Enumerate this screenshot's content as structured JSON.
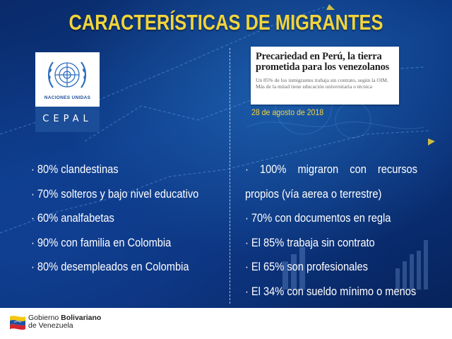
{
  "title": "CARACTERÍSTICAS DE MIGRANTES",
  "logo": {
    "un_label": "NACIONES UNIDAS",
    "cepal_label": "CEPAL"
  },
  "news": {
    "headline": "Precariedad en Perú, la tierra prometida para los venezolanos",
    "summary": "Un 85% de los inmigrantes trabaja sin contrato, según la OIM. Más de la mitad tiene educación universitaria o técnica",
    "date": "28 de agosto de 2018"
  },
  "left_items": [
    "· 80% clandestinas",
    "· 70% solteros y bajo nivel educativo",
    "· 60% analfabetas",
    "· 90% con familia en Colombia",
    "· 80% desempleados en Colombia"
  ],
  "right_items": [
    "· 100% migraron con recursos",
    "propios (vía aerea o terrestre)",
    "· 70% con documentos en regla",
    "· El 85% trabaja sin contrato",
    "· El 65% son profesionales",
    "· El 34% con sueldo mínimo o menos"
  ],
  "footer": {
    "gov_line1_prefix": "Gobierno ",
    "gov_line1_bold": "Bolivariano",
    "gov_line2": "de Venezuela"
  },
  "colors": {
    "title_yellow": "#f2d43a",
    "background_blue": "#0c3a86",
    "cepal_blue": "#1b4d98"
  }
}
